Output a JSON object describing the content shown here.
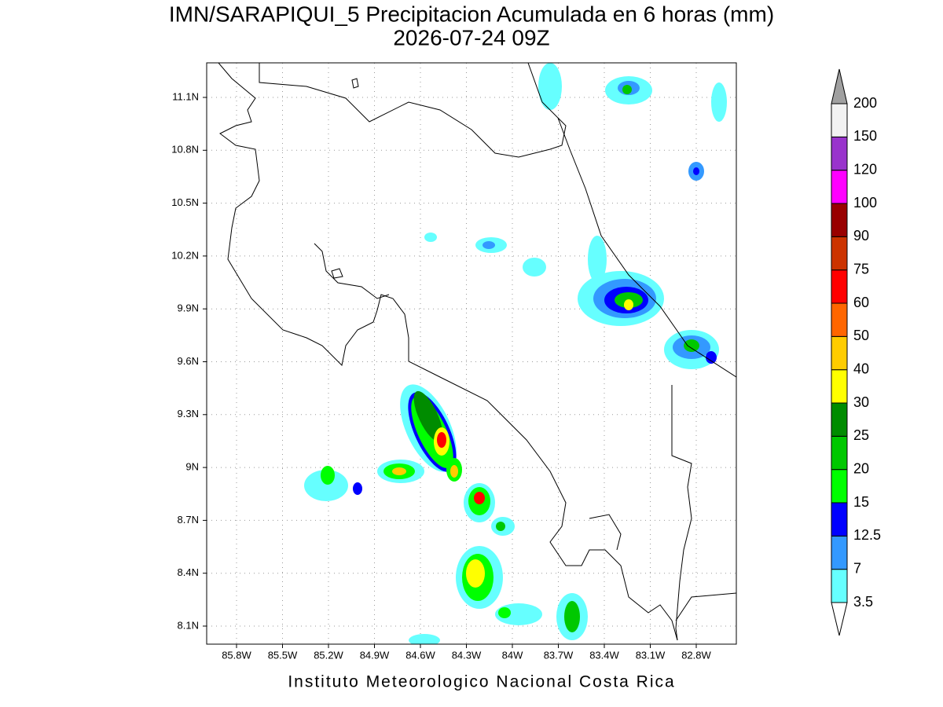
{
  "title": "IMN/SARAPIQUI_5 Precipitacion Acumulada en 6 horas (mm)",
  "subtitle": "2026-07-24 09Z",
  "footer": "Instituto Meteorologico Nacional Costa Rica",
  "map": {
    "lon_labels": [
      "85.8W",
      "85.5W",
      "85.2W",
      "84.9W",
      "84.6W",
      "84.3W",
      "84W",
      "83.7W",
      "83.4W",
      "83.1W",
      "82.8W"
    ],
    "lat_labels": [
      "11.1N",
      "10.8N",
      "10.5N",
      "10.2N",
      "9.9N",
      "9.6N",
      "9.3N",
      "9N",
      "8.7N",
      "8.4N",
      "8.1N"
    ]
  },
  "colorbar": {
    "levels": [
      3.5,
      7,
      12.5,
      15,
      20,
      25,
      30,
      40,
      50,
      60,
      75,
      90,
      100,
      120,
      150,
      200
    ],
    "colors": [
      "#66ffff",
      "#3399ff",
      "#0000ff",
      "#00ff00",
      "#00c800",
      "#008c00",
      "#ffff00",
      "#ffcc00",
      "#ff6600",
      "#ff0000",
      "#cc3300",
      "#990000",
      "#ff00ff",
      "#9933cc",
      "#f2f2f2"
    ],
    "over_color": "#a0a0a0",
    "under_color": "#ffffff"
  }
}
